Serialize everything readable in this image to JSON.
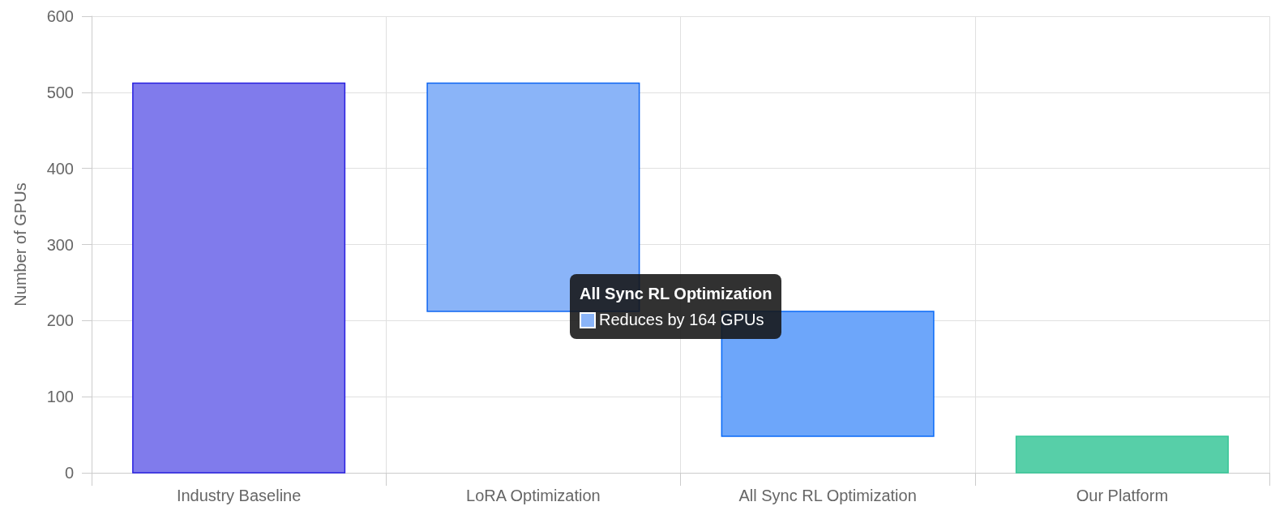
{
  "chart_data": {
    "type": "bar",
    "ylabel": "Number of GPUs",
    "categories": [
      "Industry Baseline",
      "LoRA Optimization",
      "All Sync RL Optimization",
      "Our Platform"
    ],
    "values": [
      512,
      300,
      164,
      48
    ],
    "base": [
      0,
      212,
      48,
      0
    ],
    "colors": [
      "#807bec",
      "#8ab4f8",
      "#6da6fa",
      "#57cfa8"
    ],
    "ylim": [
      0,
      600
    ],
    "yticks": [
      0,
      100,
      200,
      300,
      400,
      500,
      600
    ],
    "grid": true,
    "annotations": [
      "All Sync RL Optimization",
      "Reduces by 164 GPUs"
    ]
  }
}
